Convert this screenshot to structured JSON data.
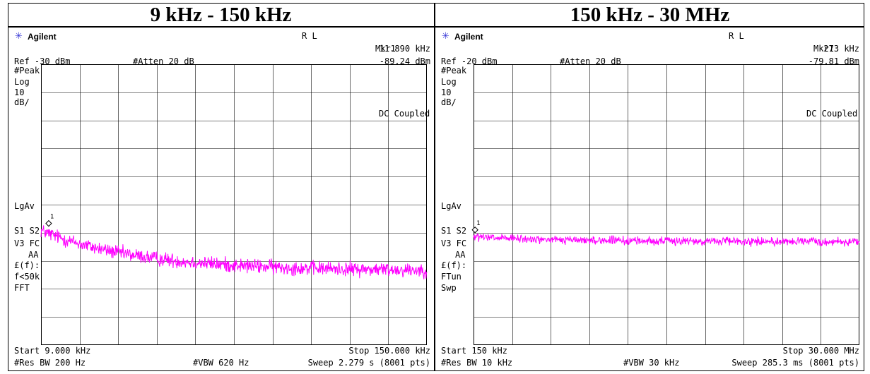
{
  "chart_data": [
    {
      "type": "line",
      "title": "9 kHz - 150 kHz",
      "brand": "Agilent",
      "mode": "R L",
      "marker": {
        "label": "Mkr1",
        "freq": "11.890 kHz",
        "ampl": "-89.24 dBm",
        "x_frac": 0.02
      },
      "ref": "Ref -30 dBm",
      "atten": "#Atten 20 dB",
      "left_labels": {
        "det": "#Peak",
        "scale1": "Log",
        "scale2": "10",
        "scale3": "dB/",
        "avg": "LgAv",
        "s": "S1  S2",
        "v": "V3  FC",
        "aa": "AA",
        "f": "£(f):",
        "m1": "f<50k",
        "m2": "FFT"
      },
      "coupling": "DC Coupled",
      "start": "Start 9.000 kHz",
      "stop": "Stop 150.000 kHz",
      "rbw": "#Res BW 200 Hz",
      "vbw": "#VBW 620 Hz",
      "sweep": "Sweep 2.279 s (8001 pts)",
      "ylim": [
        -130,
        -30
      ],
      "trace_start_dbm": -89.2,
      "trace_end_dbm": -103.5,
      "trace_noise_db": 1.6,
      "trace_decay": 4,
      "color": "#ff00ff"
    },
    {
      "type": "line",
      "title": "150 kHz - 30 MHz",
      "brand": "Agilent",
      "mode": "R L",
      "marker": {
        "label": "Mkr1",
        "freq": "273 kHz",
        "ampl": "-79.81 dBm",
        "x_frac": 0.004
      },
      "ref": "Ref -20 dBm",
      "atten": "#Atten 20 dB",
      "left_labels": {
        "det": "#Peak",
        "scale1": "Log",
        "scale2": "10",
        "scale3": "dB/",
        "avg": "LgAv",
        "s": "S1  S2",
        "v": "V3  FC",
        "aa": "AA",
        "f": "£(f):",
        "m1": "FTun",
        "m2": "Swp"
      },
      "coupling": "DC Coupled",
      "start": "Start 150 kHz",
      "stop": "Stop 30.000 MHz",
      "rbw": "#Res BW 10 kHz",
      "vbw": "#VBW 30 kHz",
      "sweep": "Sweep 285.3 ms (8001 pts)",
      "ylim": [
        -120,
        -20
      ],
      "trace_start_dbm": -81.5,
      "trace_end_dbm": -82.8,
      "trace_noise_db": 0.9,
      "trace_decay": 6,
      "color": "#ff00ff"
    }
  ]
}
